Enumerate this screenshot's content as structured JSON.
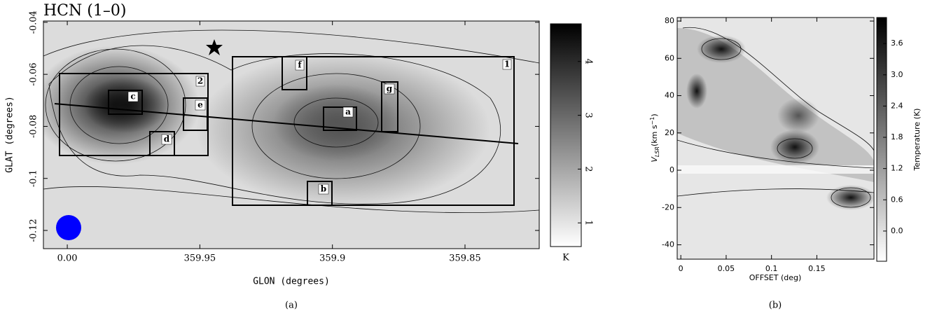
{
  "chart_data": [
    {
      "type": "map",
      "title": "HCN (1–0)",
      "xlabel": "GLON (degrees)",
      "ylabel": "GLAT (degrees)",
      "xlim": [
        0.009,
        359.822
      ],
      "xticks": [
        {
          "value": 0,
          "label": "0.00"
        },
        359.95,
        359.9,
        359.85
      ],
      "ylim": [
        -0.127,
        -0.0395
      ],
      "yticks": [
        -0.04,
        -0.06,
        -0.08,
        -0.1,
        -0.12
      ],
      "clim": [
        0.56,
        4.7
      ],
      "cticks": [
        1,
        2,
        3,
        4
      ],
      "clabel": "K",
      "annotations": [
        "1",
        "2",
        "a",
        "b",
        "c",
        "d",
        "e",
        "f",
        "g"
      ],
      "caption": "(a)"
    },
    {
      "type": "pv",
      "xlabel": "OFFSET (deg)",
      "ylabel": [
        "V",
        "LSR",
        "(km s",
        "−1",
        ")"
      ],
      "xlim": [
        -0.004,
        0.213
      ],
      "xticks": [
        0,
        0.05,
        0.1,
        0.15
      ],
      "ylim": [
        -47.7,
        81.9
      ],
      "yticks": [
        80,
        60,
        40,
        20,
        0,
        -20,
        -40
      ],
      "clim": [
        -0.58,
        4.1
      ],
      "cticks": [
        {
          "value": 0,
          "label": "0.0"
        },
        0.6,
        1.2,
        1.8,
        2.4,
        {
          "value": 3,
          "label": "3.0"
        },
        3.6
      ],
      "clabel": "Temperature (K)",
      "caption": "(b)"
    }
  ]
}
